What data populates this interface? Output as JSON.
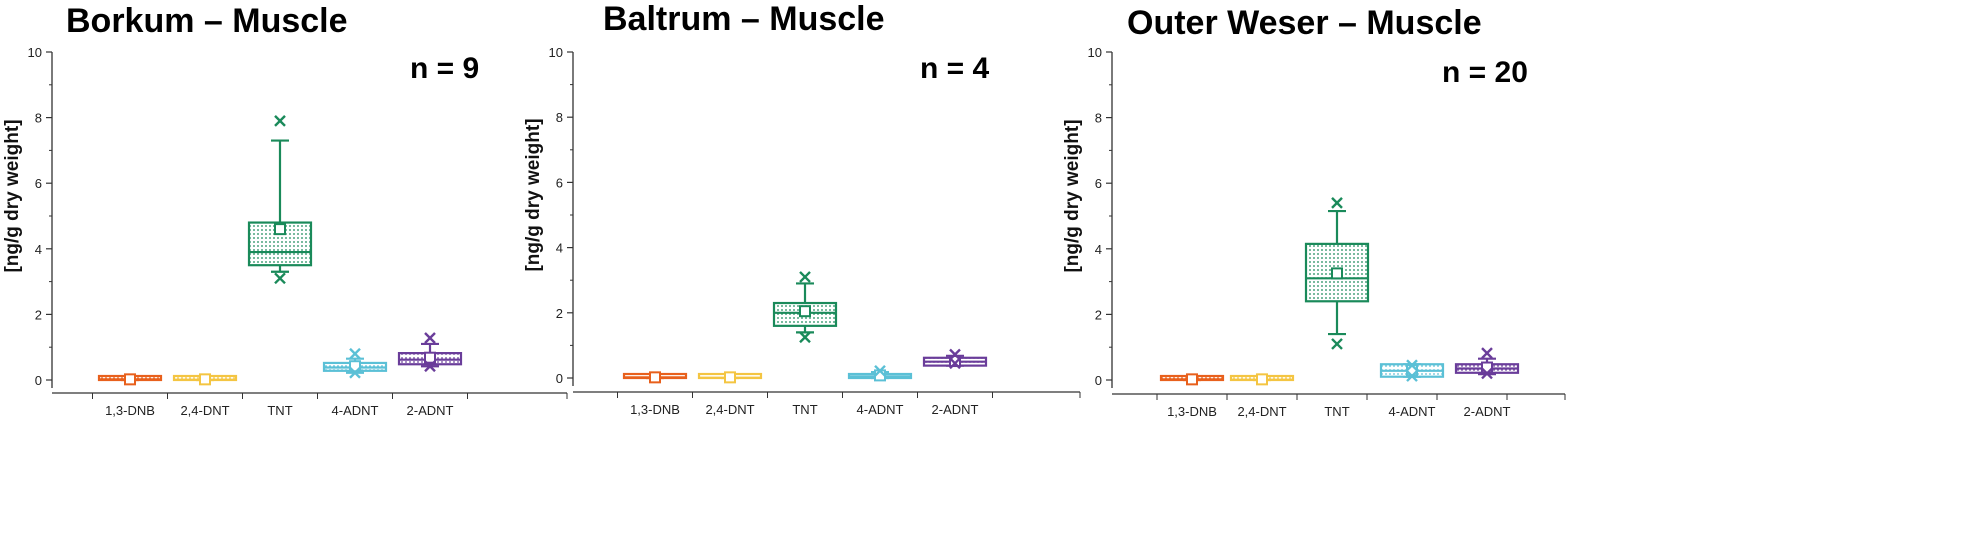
{
  "colors": {
    "1,3-DNB": "#e8601c",
    "2,4-DNT": "#f4c542",
    "TNT": "#1a8a5a",
    "4-ADNT": "#5bc0d6",
    "2-ADNT": "#6a3d9a"
  },
  "chart_data": [
    {
      "type": "box",
      "title": "Borkum – Muscle",
      "n_label": "n = 9",
      "ylabel": "[ng/g dry weight]",
      "ylim": [
        0,
        10
      ],
      "yticks": [
        0,
        2,
        4,
        6,
        8,
        10
      ],
      "grid": false,
      "categories": [
        "1,3-DNB",
        "2,4-DNT",
        "TNT",
        "4-ADNT",
        "2-ADNT"
      ],
      "boxes": [
        {
          "category": "1,3-DNB",
          "q1": 0.0,
          "median": 0.02,
          "q3": 0.04,
          "mean": 0.02,
          "whisker_low": 0.0,
          "whisker_high": 0.05,
          "outliers": []
        },
        {
          "category": "2,4-DNT",
          "q1": 0.0,
          "median": 0.01,
          "q3": 0.03,
          "mean": 0.02,
          "whisker_low": 0.0,
          "whisker_high": 0.04,
          "outliers": []
        },
        {
          "category": "TNT",
          "q1": 3.5,
          "median": 3.9,
          "q3": 4.8,
          "mean": 4.6,
          "whisker_low": 3.3,
          "whisker_high": 7.3,
          "outliers": [
            3.1,
            7.9
          ]
        },
        {
          "category": "4-ADNT",
          "q1": 0.28,
          "median": 0.38,
          "q3": 0.52,
          "mean": 0.42,
          "whisker_low": 0.22,
          "whisker_high": 0.65,
          "outliers": [
            0.22,
            0.8
          ]
        },
        {
          "category": "2-ADNT",
          "q1": 0.48,
          "median": 0.62,
          "q3": 0.82,
          "mean": 0.68,
          "whisker_low": 0.42,
          "whisker_high": 1.1,
          "outliers": [
            0.42,
            1.28
          ]
        }
      ]
    },
    {
      "type": "box",
      "title": "Baltrum – Muscle",
      "n_label": "n = 4",
      "ylabel": "[ng/g dry weight]",
      "ylim": [
        0,
        10
      ],
      "yticks": [
        0,
        2,
        4,
        6,
        8,
        10
      ],
      "grid": false,
      "categories": [
        "1,3-DNB",
        "2,4-DNT",
        "TNT",
        "4-ADNT",
        "2-ADNT"
      ],
      "boxes": [
        {
          "category": "1,3-DNB",
          "q1": 0.0,
          "median": 0.02,
          "q3": 0.04,
          "mean": 0.02,
          "whisker_low": 0.0,
          "whisker_high": 0.05,
          "outliers": []
        },
        {
          "category": "2,4-DNT",
          "q1": 0.0,
          "median": 0.01,
          "q3": 0.03,
          "mean": 0.02,
          "whisker_low": 0.0,
          "whisker_high": 0.04,
          "outliers": []
        },
        {
          "category": "TNT",
          "q1": 1.6,
          "median": 2.0,
          "q3": 2.3,
          "mean": 2.05,
          "whisker_low": 1.4,
          "whisker_high": 2.9,
          "outliers": [
            1.25,
            3.1
          ]
        },
        {
          "category": "4-ADNT",
          "q1": 0.0,
          "median": 0.05,
          "q3": 0.12,
          "mean": 0.08,
          "whisker_low": 0.0,
          "whisker_high": 0.18,
          "outliers": [
            0.22
          ]
        },
        {
          "category": "2-ADNT",
          "q1": 0.38,
          "median": 0.5,
          "q3": 0.62,
          "mean": 0.52,
          "whisker_low": 0.38,
          "whisker_high": 0.68,
          "outliers": [
            0.72,
            0.45
          ]
        }
      ]
    },
    {
      "type": "box",
      "title": "Outer Weser – Muscle",
      "n_label": "n = 20",
      "ylabel": "[ng/g dry weight]",
      "ylim": [
        0,
        10
      ],
      "yticks": [
        0,
        2,
        4,
        6,
        8,
        10
      ],
      "grid": false,
      "categories": [
        "1,3-DNB",
        "2,4-DNT",
        "TNT",
        "4-ADNT",
        "2-ADNT"
      ],
      "boxes": [
        {
          "category": "1,3-DNB",
          "q1": 0.0,
          "median": 0.02,
          "q3": 0.04,
          "mean": 0.02,
          "whisker_low": 0.0,
          "whisker_high": 0.05,
          "outliers": []
        },
        {
          "category": "2,4-DNT",
          "q1": 0.0,
          "median": 0.01,
          "q3": 0.03,
          "mean": 0.02,
          "whisker_low": 0.0,
          "whisker_high": 0.04,
          "outliers": []
        },
        {
          "category": "TNT",
          "q1": 2.4,
          "median": 3.1,
          "q3": 4.15,
          "mean": 3.25,
          "whisker_low": 1.4,
          "whisker_high": 5.15,
          "outliers": [
            1.1,
            5.4
          ]
        },
        {
          "category": "4-ADNT",
          "q1": 0.1,
          "median": 0.28,
          "q3": 0.48,
          "mean": 0.3,
          "whisker_low": 0.1,
          "whisker_high": 0.48,
          "outliers": [
            0.12,
            0.45
          ]
        },
        {
          "category": "2-ADNT",
          "q1": 0.22,
          "median": 0.35,
          "q3": 0.48,
          "mean": 0.38,
          "whisker_low": 0.18,
          "whisker_high": 0.65,
          "outliers": [
            0.2,
            0.82
          ]
        }
      ]
    }
  ]
}
